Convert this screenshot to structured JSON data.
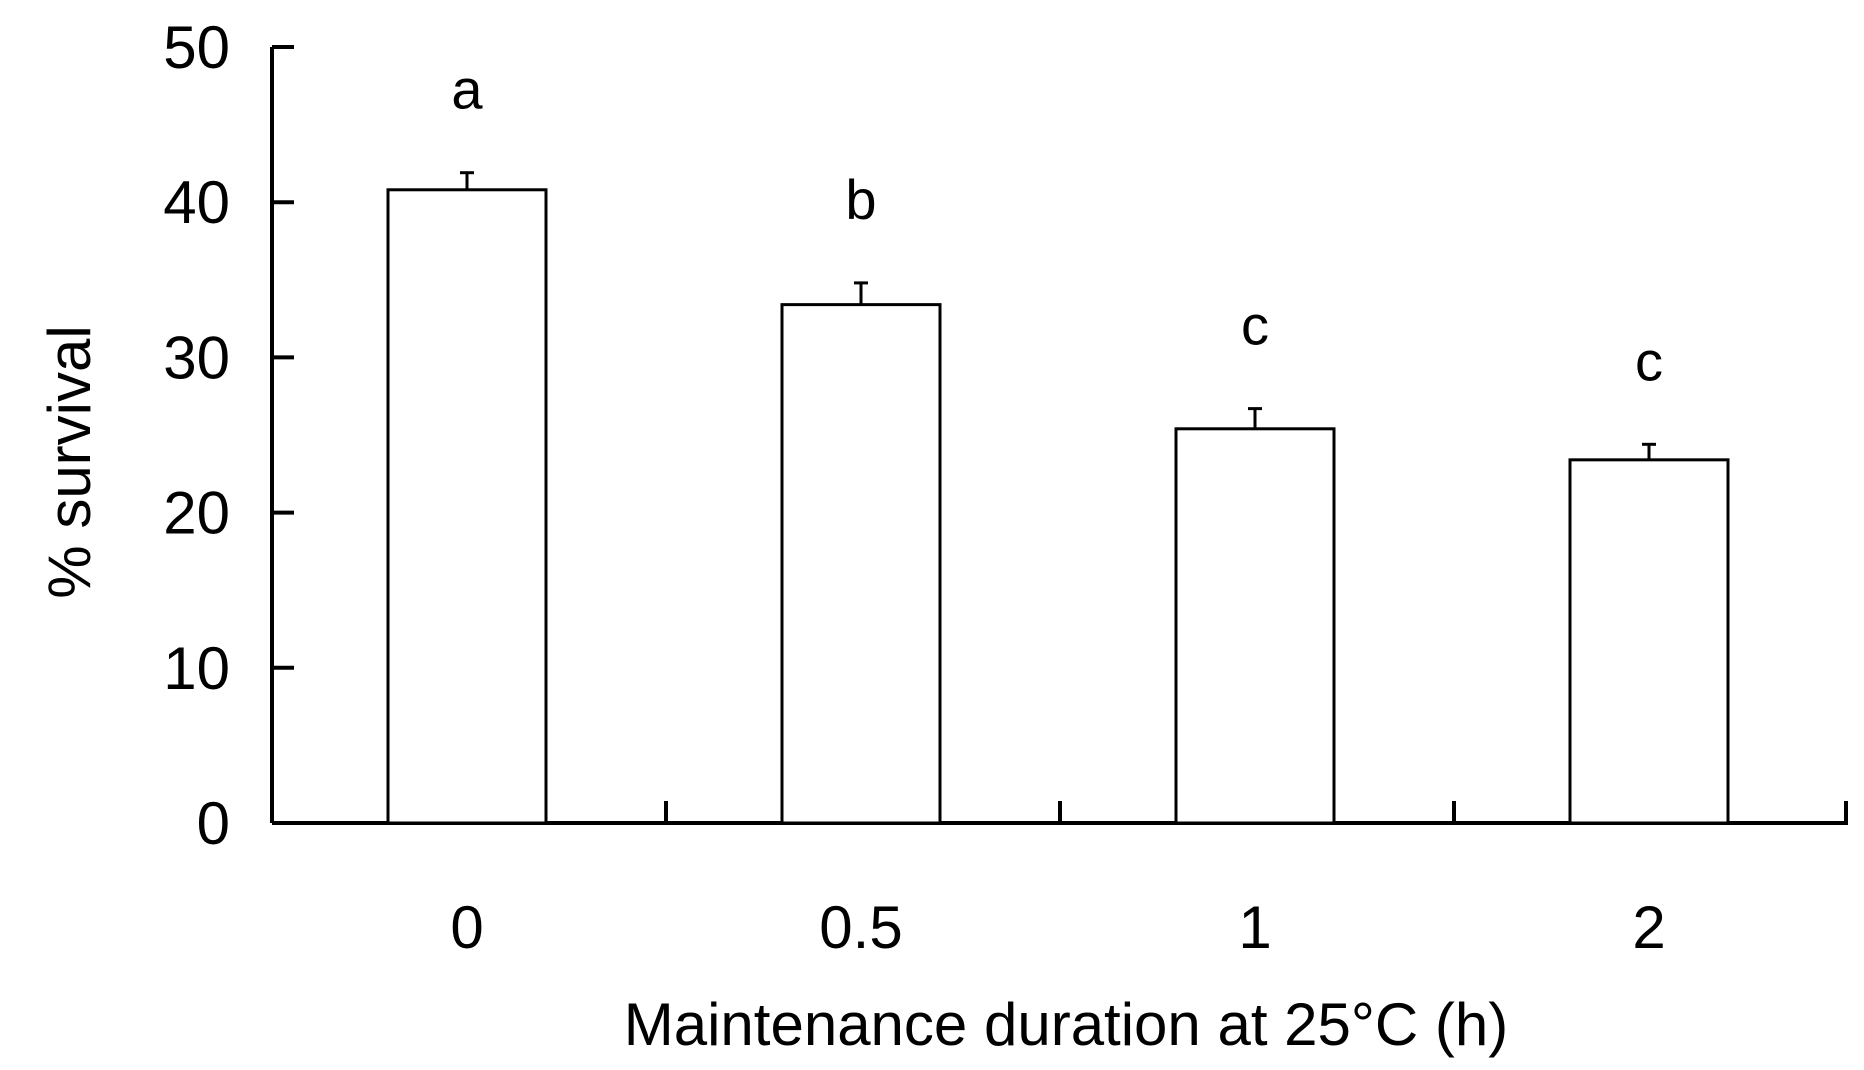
{
  "chart_data": {
    "type": "bar",
    "categories": [
      "0",
      "0.5",
      "1",
      "2"
    ],
    "values": [
      40.8,
      33.4,
      25.4,
      23.4
    ],
    "errors": [
      1.1,
      1.4,
      1.3,
      1.0
    ],
    "significance_letters": [
      "a",
      "b",
      "c",
      "c"
    ],
    "xlabel": "Maintenance duration at 25°C (h)",
    "ylabel": "% survival",
    "ylim": [
      0,
      50
    ],
    "yticks": [
      0,
      10,
      20,
      30,
      40,
      50
    ],
    "grid": false,
    "legend": "none",
    "bar_fill": "#ffffff",
    "bar_stroke": "#000000"
  }
}
